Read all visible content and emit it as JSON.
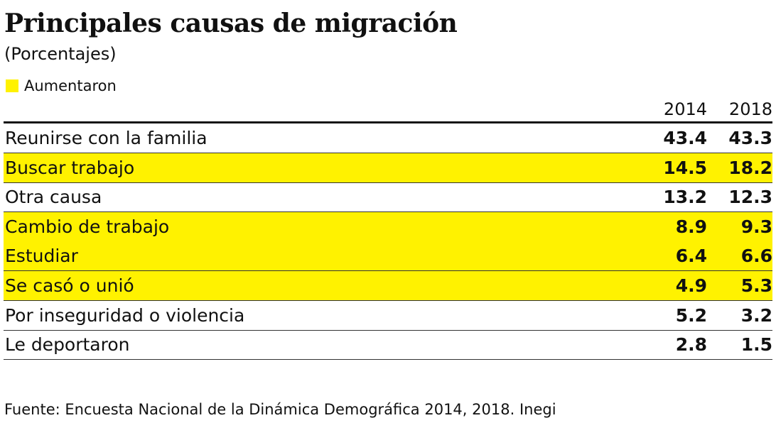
{
  "header": {
    "title": "Principales causas de migración",
    "subtitle": "(Porcentajes)"
  },
  "legend": {
    "label": "Aumentaron",
    "color": "#fff200"
  },
  "table": {
    "columns": [
      "2014",
      "2018"
    ],
    "rows": [
      {
        "label": "Reunirse con la familia",
        "values": [
          43.4,
          43.3
        ],
        "highlighted": false
      },
      {
        "label": "Buscar trabajo",
        "values": [
          14.5,
          18.2
        ],
        "highlighted": true
      },
      {
        "label": "Otra causa",
        "values": [
          13.2,
          12.3
        ],
        "highlighted": false
      },
      {
        "label": "Cambio de trabajo",
        "values": [
          8.9,
          9.3
        ],
        "highlighted": true
      },
      {
        "label": "Estudiar",
        "values": [
          6.4,
          6.6
        ],
        "highlighted": true
      },
      {
        "label": "Se casó o unió",
        "values": [
          4.9,
          5.3
        ],
        "highlighted": true
      },
      {
        "label": "Por inseguridad o violencia",
        "values": [
          5.2,
          3.2
        ],
        "highlighted": false
      },
      {
        "label": "Le deportaron",
        "values": [
          2.8,
          1.5
        ],
        "highlighted": false
      }
    ]
  },
  "footer": {
    "source": "Fuente: Encuesta Nacional de la Dinámica Demográfica 2014, 2018. Inegi"
  }
}
